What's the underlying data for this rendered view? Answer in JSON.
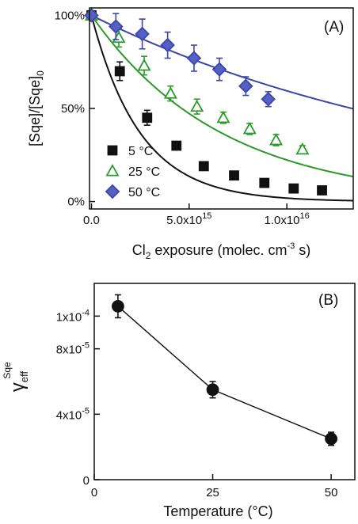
{
  "chart_data": [
    {
      "panel": "(A)",
      "type": "scatter",
      "xlabel": "Cl₂ exposure (molec. cm⁻³ s)",
      "xlabel_parts": {
        "pre": "Cl",
        "sub": "2",
        "mid": " exposure (molec. cm",
        "sup": "-3",
        "post": " s)"
      },
      "ylabel": "[Sqe]/[Sqe]₀",
      "ylabel_parts": {
        "main": "[Sqe]/[Sqe]",
        "sub": "0"
      },
      "xlim": [
        -100000000000000.0,
        1.34e+16
      ],
      "ylim": [
        -4,
        104
      ],
      "x_ticks": [
        {
          "value": 0,
          "label": "0.0"
        },
        {
          "value": 5000000000000000.0,
          "label": "5.0x10",
          "exp": "15"
        },
        {
          "value": 1e+16,
          "label": "1.0x10",
          "exp": "16"
        }
      ],
      "y_ticks": [
        {
          "value": 0,
          "label": "0%"
        },
        {
          "value": 50,
          "label": "50%"
        },
        {
          "value": 100,
          "label": "100%"
        }
      ],
      "legend_position": "bottom-left",
      "series": [
        {
          "name": "5 °C",
          "marker": "square",
          "color": "#111111",
          "fill": "#111111",
          "x": [
            0,
            1450000000000000.0,
            2850000000000000.0,
            4350000000000000.0,
            5750000000000000.0,
            7300000000000000.0,
            8850000000000000.0,
            1.035e+16,
            1.18e+16
          ],
          "y": [
            100,
            70,
            45,
            30,
            19,
            14,
            10,
            7,
            6
          ],
          "yerr": [
            0,
            5,
            4,
            2,
            1,
            1,
            1,
            1,
            1
          ],
          "fit_k": 4e-16,
          "fit_offset": 0
        },
        {
          "name": "25 °C",
          "marker": "triangle",
          "color": "#2a9a2a",
          "fill": "none",
          "x": [
            0,
            1400000000000000.0,
            2700000000000000.0,
            4050000000000000.0,
            5400000000000000.0,
            6750000000000000.0,
            8100000000000000.0,
            9450000000000000.0,
            1.08e+16
          ],
          "y": [
            100,
            88,
            73,
            58,
            51,
            45,
            39,
            33,
            28
          ],
          "yerr": [
            0,
            5,
            5,
            4,
            4,
            3,
            3,
            3,
            2
          ],
          "fit_k": 1.5e-16,
          "fit_offset": 0
        },
        {
          "name": "50 °C",
          "marker": "diamond",
          "color": "#3b46a8",
          "fill": "#5560c4",
          "x": [
            0,
            1250000000000000.0,
            2600000000000000.0,
            3900000000000000.0,
            5250000000000000.0,
            6550000000000000.0,
            7900000000000000.0,
            9050000000000000.0
          ],
          "y": [
            100,
            94,
            90,
            84,
            77,
            71,
            62,
            55
          ],
          "yerr": [
            0,
            7,
            8,
            7,
            7,
            6,
            5,
            4
          ],
          "fit_k": 5.2e-17,
          "fit_offset": 0
        }
      ]
    },
    {
      "panel": "(B)",
      "type": "line",
      "xlabel": "Temperature (°C)",
      "ylabel": "γeff Sqe",
      "ylabel_parts": {
        "gamma": "γ",
        "sub": "eff",
        "sup": "Sqe"
      },
      "xlim": [
        0,
        55
      ],
      "ylim": [
        0,
        0.00012
      ],
      "x_ticks": [
        {
          "value": 0,
          "label": "0"
        },
        {
          "value": 25,
          "label": "25"
        },
        {
          "value": 50,
          "label": "50"
        }
      ],
      "y_ticks": [
        {
          "value": 0,
          "label": "0"
        },
        {
          "value": 4e-05,
          "label": "4x10",
          "exp": "-5"
        },
        {
          "value": 8e-05,
          "label": "8x10",
          "exp": "-5"
        },
        {
          "value": 0.0001,
          "label": "1x10",
          "exp": "-4"
        }
      ],
      "series": [
        {
          "marker": "circle",
          "color": "#111111",
          "x": [
            5,
            25,
            50
          ],
          "y": [
            0.000106,
            5.5e-05,
            2.5e-05
          ],
          "yerr": [
            7e-06,
            5e-06,
            4e-06
          ]
        }
      ]
    }
  ]
}
